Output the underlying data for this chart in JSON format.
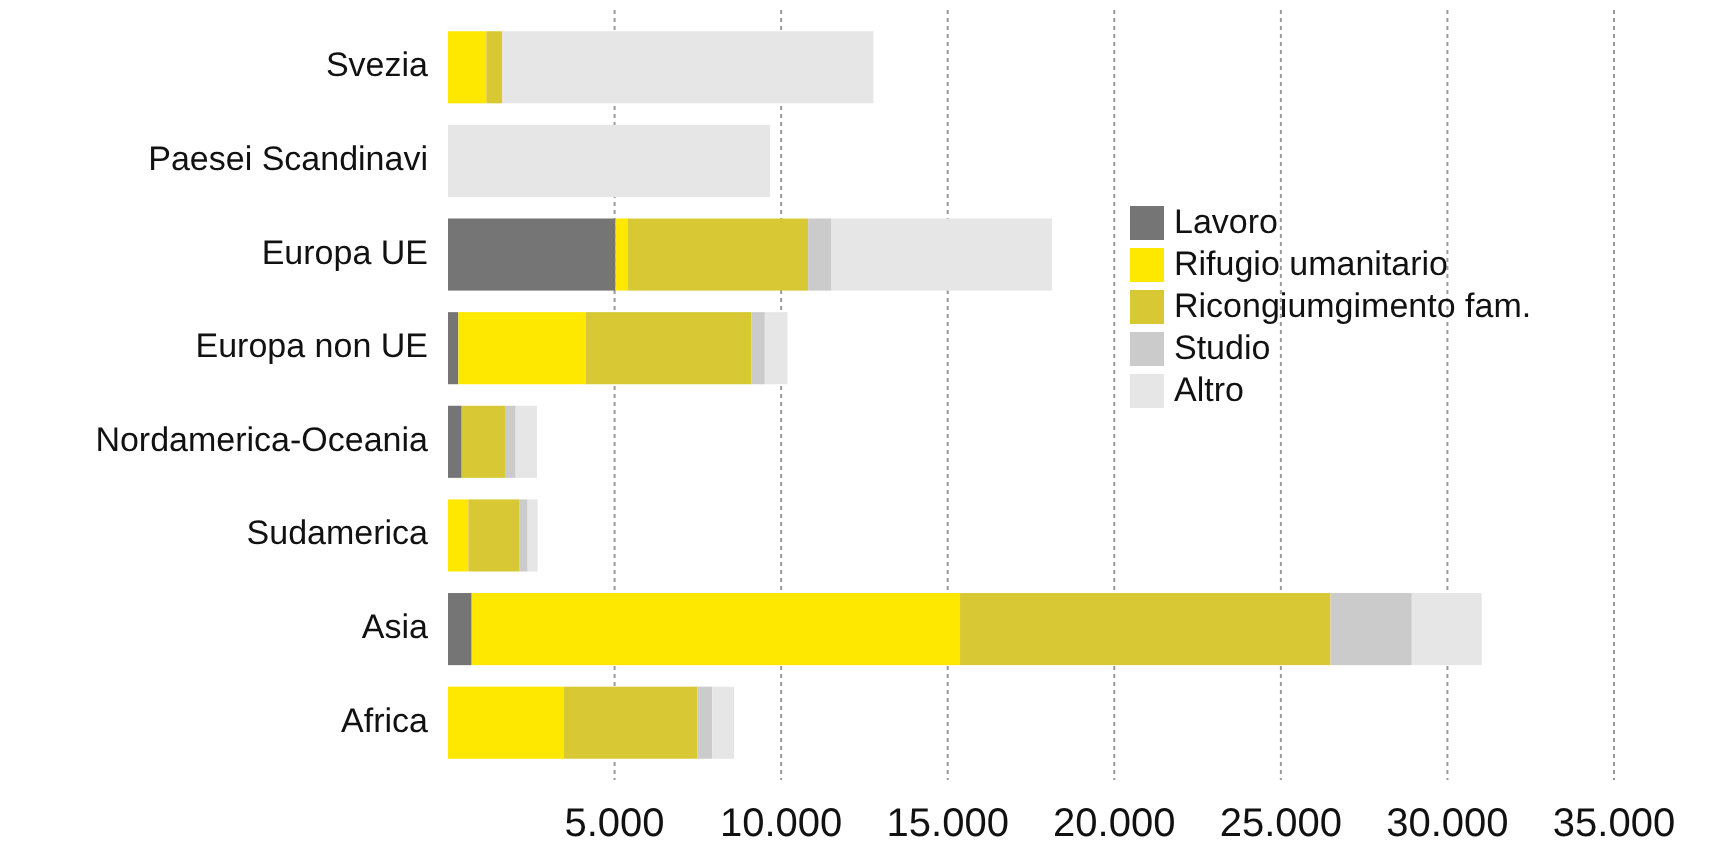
{
  "chart_data": {
    "type": "bar",
    "orientation": "horizontal",
    "stacked": true,
    "categories": [
      "Svezia",
      "Paesei Scandinavi",
      "Europa UE",
      "Europa non UE",
      "Nordamerica-Oceania",
      "Sudamerica",
      "Asia",
      "Africa"
    ],
    "series": [
      {
        "name": "Lavoro",
        "color": "#757575",
        "values": [
          0,
          0,
          5030,
          310,
          410,
          0,
          710,
          0
        ]
      },
      {
        "name": "Rifugio umanitario",
        "color": "#ffe800",
        "values": [
          1150,
          0,
          360,
          3820,
          0,
          610,
          14660,
          3470
        ]
      },
      {
        "name": "Ricongiumgimento fam.",
        "color": "#d8c934",
        "values": [
          480,
          0,
          5420,
          4980,
          1300,
          1540,
          11120,
          4020
        ]
      },
      {
        "name": "Studio",
        "color": "#cbcbcb",
        "values": [
          0,
          0,
          700,
          400,
          320,
          240,
          2440,
          440
        ]
      },
      {
        "name": "Altro",
        "color": "#e6e6e6",
        "values": [
          11140,
          9670,
          6620,
          680,
          640,
          300,
          2100,
          660
        ]
      }
    ],
    "xlim": [
      0,
      35000
    ],
    "xticks": [
      {
        "value": 5000,
        "label": "5.000"
      },
      {
        "value": 10000,
        "label": "10.000"
      },
      {
        "value": 15000,
        "label": "15.000"
      },
      {
        "value": 20000,
        "label": "20.000"
      },
      {
        "value": 25000,
        "label": "25.000"
      },
      {
        "value": 30000,
        "label": "30.000"
      },
      {
        "value": 35000,
        "label": "35.000"
      }
    ],
    "grid": "x",
    "legend": "right"
  }
}
